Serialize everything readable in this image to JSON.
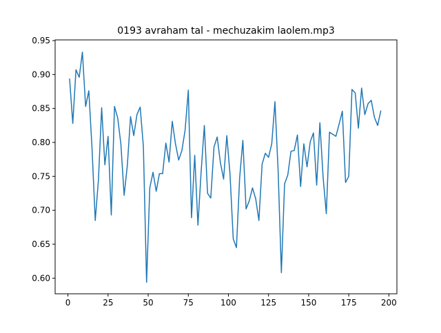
{
  "chart_data": {
    "type": "line",
    "title": "0193 avraham tal - mechuzakim laolem.mp3",
    "xlabel": "",
    "ylabel": "",
    "xlim": [
      -8,
      205
    ],
    "ylim": [
      0.577,
      0.951
    ],
    "xticks": [
      0,
      25,
      50,
      75,
      100,
      125,
      150,
      175,
      200
    ],
    "yticks": [
      0.6,
      0.65,
      0.7,
      0.75,
      0.8,
      0.85,
      0.9,
      0.95
    ],
    "ytick_labels": [
      "0.60",
      "0.65",
      "0.70",
      "0.75",
      "0.80",
      "0.85",
      "0.90",
      "0.95"
    ],
    "xtick_labels": [
      "0",
      "25",
      "50",
      "75",
      "100",
      "125",
      "150",
      "175",
      "200"
    ],
    "grid": false,
    "series": [
      {
        "color": "#1f77b4",
        "x": [
          1,
          3,
          5,
          7,
          9,
          11,
          13,
          15,
          17,
          19,
          21,
          23,
          25,
          27,
          29,
          31,
          33,
          35,
          37,
          39,
          41,
          43,
          45,
          47,
          49,
          51,
          53,
          55,
          57,
          59,
          61,
          63,
          65,
          67,
          69,
          71,
          73,
          75,
          77,
          79,
          81,
          83,
          85,
          87,
          89,
          91,
          93,
          95,
          97,
          99,
          101,
          103,
          105,
          107,
          109,
          111,
          113,
          115,
          117,
          119,
          121,
          123,
          125,
          127,
          129,
          131,
          133,
          135,
          137,
          139,
          141,
          143,
          145,
          147,
          149,
          151,
          153,
          155,
          157,
          159,
          161,
          163,
          165,
          167,
          169,
          171,
          173,
          175,
          177,
          179,
          181,
          183,
          185,
          187,
          189,
          191,
          193,
          195
        ],
        "y": [
          0.894,
          0.828,
          0.907,
          0.896,
          0.933,
          0.853,
          0.876,
          0.791,
          0.685,
          0.745,
          0.851,
          0.767,
          0.809,
          0.693,
          0.853,
          0.836,
          0.797,
          0.722,
          0.766,
          0.838,
          0.81,
          0.841,
          0.852,
          0.794,
          0.594,
          0.733,
          0.756,
          0.728,
          0.754,
          0.754,
          0.799,
          0.771,
          0.831,
          0.798,
          0.774,
          0.788,
          0.818,
          0.877,
          0.689,
          0.781,
          0.678,
          0.757,
          0.825,
          0.725,
          0.718,
          0.793,
          0.808,
          0.77,
          0.746,
          0.81,
          0.753,
          0.658,
          0.645,
          0.748,
          0.803,
          0.702,
          0.714,
          0.733,
          0.717,
          0.685,
          0.768,
          0.784,
          0.778,
          0.798,
          0.86,
          0.757,
          0.608,
          0.739,
          0.752,
          0.787,
          0.788,
          0.811,
          0.735,
          0.798,
          0.764,
          0.801,
          0.814,
          0.737,
          0.829,
          0.749,
          0.695,
          0.815,
          0.812,
          0.809,
          0.827,
          0.846,
          0.741,
          0.75,
          0.878,
          0.873,
          0.821,
          0.88,
          0.841,
          0.857,
          0.862,
          0.837,
          0.825,
          0.847
        ]
      }
    ]
  }
}
